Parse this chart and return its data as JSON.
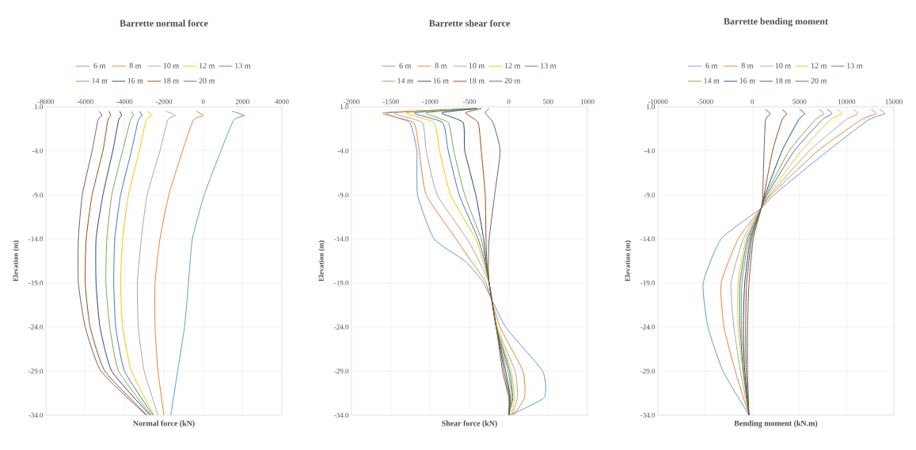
{
  "chart_data": [
    {
      "type": "line",
      "title": "Barrette normal force",
      "xlabel": "Normal force (kN)",
      "ylabel": "Elevation (m)",
      "xlim": [
        -8000,
        4000
      ],
      "xticks": [
        -8000,
        -6000,
        -4000,
        -2000,
        0,
        2000,
        4000
      ],
      "ylim": [
        -34,
        1
      ],
      "yticks": [
        {
          "value": 1,
          "label": "1.0"
        },
        {
          "value": -4,
          "label": "-4.0"
        },
        {
          "value": -9,
          "label": "-9.0"
        },
        {
          "value": -14,
          "label": "-14.0"
        },
        {
          "value": -19,
          "label": "-19.0"
        },
        {
          "value": -24,
          "label": "-24.0"
        },
        {
          "value": -29,
          "label": "-29.0"
        },
        {
          "value": -34,
          "label": "-34.0"
        }
      ],
      "grid": true,
      "legend": "top",
      "series": [
        {
          "name": "6 m",
          "color": "#5b9bd5",
          "x": [
            1450,
            2100,
            1550,
            900,
            50,
            -550,
            -750,
            -950,
            -1300,
            -1650
          ],
          "values": [
            0.5,
            0,
            -0.5,
            -4,
            -9,
            -14,
            -19,
            -24,
            -29,
            -34
          ]
        },
        {
          "name": "8 m",
          "color": "#ed7d31",
          "x": [
            -350,
            0,
            -500,
            -1050,
            -1750,
            -2200,
            -2450,
            -2450,
            -2300,
            -2000
          ],
          "values": [
            0.5,
            0,
            -0.5,
            -4,
            -9,
            -14,
            -19,
            -24,
            -29,
            -34
          ]
        },
        {
          "name": "10 m",
          "color": "#a5a5a5",
          "x": [
            -1900,
            -1400,
            -1800,
            -2200,
            -2850,
            -3150,
            -3350,
            -3300,
            -3000,
            -2300
          ],
          "values": [
            0.5,
            0,
            -0.5,
            -4,
            -9,
            -14,
            -19,
            -24,
            -29,
            -34
          ]
        },
        {
          "name": "12 m",
          "color": "#ffc000",
          "x": [
            -2850,
            -2600,
            -2900,
            -3250,
            -3800,
            -4100,
            -4200,
            -4100,
            -3650,
            -2500
          ],
          "values": [
            0.5,
            0,
            -0.5,
            -4,
            -9,
            -14,
            -19,
            -24,
            -29,
            -34
          ]
        },
        {
          "name": "13 m",
          "color": "#4472c4",
          "x": [
            -3250,
            -3100,
            -3300,
            -3650,
            -4200,
            -4500,
            -4550,
            -4450,
            -4000,
            -2550
          ],
          "values": [
            0.5,
            0,
            -0.5,
            -4,
            -9,
            -14,
            -19,
            -24,
            -29,
            -34
          ]
        },
        {
          "name": "14 m",
          "color": "#70ad47",
          "x": [
            -3650,
            -3550,
            -3700,
            -4100,
            -4650,
            -4900,
            -4950,
            -4750,
            -4300,
            -2650
          ],
          "values": [
            0.5,
            0,
            -0.5,
            -4,
            -9,
            -14,
            -19,
            -24,
            -29,
            -34
          ]
        },
        {
          "name": "16 m",
          "color": "#264478",
          "x": [
            -4250,
            -4150,
            -4300,
            -4600,
            -5100,
            -5450,
            -5450,
            -5250,
            -4650,
            -2700
          ],
          "values": [
            0.5,
            0,
            -0.5,
            -4,
            -9,
            -14,
            -19,
            -24,
            -29,
            -34
          ]
        },
        {
          "name": "18 m",
          "color": "#9e480e",
          "x": [
            -4800,
            -4700,
            -4850,
            -5100,
            -5650,
            -5950,
            -6000,
            -5750,
            -5000,
            -2850
          ],
          "values": [
            0.5,
            0,
            -0.5,
            -4,
            -9,
            -14,
            -19,
            -24,
            -29,
            -34
          ]
        },
        {
          "name": "20 m",
          "color": "#636363",
          "x": [
            -5300,
            -5150,
            -5350,
            -5650,
            -6150,
            -6350,
            -6350,
            -6000,
            -5200,
            -2900
          ],
          "values": [
            0.5,
            0,
            -0.5,
            -4,
            -9,
            -14,
            -19,
            -24,
            -29,
            -34
          ]
        }
      ]
    },
    {
      "type": "line",
      "title": "Barrette shear force",
      "xlabel": "Shear force (kN)",
      "ylabel": "Elevation (m)",
      "xlim": [
        -2000,
        1000
      ],
      "xticks": [
        -2000,
        -1500,
        -1000,
        -500,
        0,
        500,
        1000
      ],
      "ylim": [
        -34,
        1
      ],
      "yticks": [
        {
          "value": 1,
          "label": "1.0"
        },
        {
          "value": -4,
          "label": "-4.0"
        },
        {
          "value": -9,
          "label": "-9.0"
        },
        {
          "value": -14,
          "label": "-14.0"
        },
        {
          "value": -19,
          "label": "-19.0"
        },
        {
          "value": -24,
          "label": "-24.0"
        },
        {
          "value": -29,
          "label": "-29.0"
        },
        {
          "value": -34,
          "label": "-34.0"
        }
      ],
      "grid": true,
      "legend": "top",
      "series": [
        {
          "name": "6 m",
          "color": "#5b9bd5",
          "x": [
            -450,
            -1550,
            -1260,
            -1170,
            -1160,
            -950,
            -560,
            -320,
            -40,
            430,
            450,
            10
          ],
          "values": [
            0.8,
            0.3,
            -0.8,
            -4,
            -9,
            -14,
            -16.5,
            -19,
            -24,
            -29,
            -32,
            -34
          ]
        },
        {
          "name": "8 m",
          "color": "#ed7d31",
          "x": [
            -450,
            -1600,
            -1210,
            -1140,
            -1050,
            -670,
            -480,
            -290,
            -110,
            180,
            200,
            60
          ],
          "values": [
            0.8,
            0.3,
            -0.8,
            -4,
            -9,
            -14,
            -16.5,
            -19,
            -24,
            -29,
            -32,
            -34
          ]
        },
        {
          "name": "10 m",
          "color": "#a5a5a5",
          "x": [
            -440,
            -1450,
            -1100,
            -1050,
            -910,
            -530,
            -380,
            -250,
            -150,
            80,
            110,
            40
          ],
          "values": [
            0.8,
            0.3,
            -0.8,
            -4,
            -9,
            -14,
            -16.5,
            -19,
            -24,
            -29,
            -32,
            -34
          ]
        },
        {
          "name": "12 m",
          "color": "#ffc000",
          "x": [
            -430,
            -1300,
            -950,
            -880,
            -740,
            -420,
            -330,
            -250,
            -150,
            30,
            70,
            30
          ],
          "values": [
            0.8,
            0.3,
            -0.8,
            -4,
            -9,
            -14,
            -16.5,
            -19,
            -24,
            -29,
            -32,
            -34
          ]
        },
        {
          "name": "13 m",
          "color": "#4472c4",
          "x": [
            -420,
            -1200,
            -840,
            -770,
            -630,
            -390,
            -310,
            -250,
            -160,
            10,
            50,
            0
          ],
          "values": [
            0.8,
            0.3,
            -0.8,
            -4,
            -9,
            -14,
            -16.5,
            -19,
            -24,
            -29,
            -32,
            -34
          ]
        },
        {
          "name": "14 m",
          "color": "#70ad47",
          "x": [
            -410,
            -1050,
            -770,
            -700,
            -560,
            -350,
            -300,
            -250,
            -160,
            -10,
            40,
            0
          ],
          "values": [
            0.8,
            0.3,
            -0.8,
            -4,
            -9,
            -14,
            -16.5,
            -19,
            -24,
            -29,
            -32,
            -34
          ]
        },
        {
          "name": "16 m",
          "color": "#264478",
          "x": [
            -400,
            -850,
            -580,
            -560,
            -420,
            -320,
            -290,
            -250,
            -160,
            -40,
            20,
            0
          ],
          "values": [
            0.8,
            0.3,
            -0.8,
            -4,
            -9,
            -14,
            -16.5,
            -19,
            -24,
            -29,
            -32,
            -34
          ]
        },
        {
          "name": "18 m",
          "color": "#9e480e",
          "x": [
            -350,
            -550,
            -390,
            -350,
            -300,
            -290,
            -280,
            -250,
            -160,
            -60,
            10,
            0
          ],
          "values": [
            0.8,
            0.3,
            -0.8,
            -4,
            -9,
            -14,
            -16.5,
            -19,
            -24,
            -29,
            -32,
            -34
          ]
        },
        {
          "name": "20 m",
          "color": "#636363",
          "x": [
            -250,
            -300,
            -200,
            -110,
            -180,
            -250,
            -260,
            -250,
            -160,
            -80,
            0,
            0
          ],
          "values": [
            0.8,
            0.3,
            -0.8,
            -4,
            -9,
            -14,
            -16.5,
            -19,
            -24,
            -29,
            -32,
            -34
          ]
        }
      ]
    },
    {
      "type": "line",
      "title": "Barrette bending moment",
      "xlabel": "Bending moment (kN.m)",
      "ylabel": "Elevation (m)",
      "xlim": [
        -10000,
        15000
      ],
      "xticks": [
        -10000,
        -5000,
        0,
        5000,
        10000,
        15000
      ],
      "ylim": [
        -34,
        1
      ],
      "yticks": [
        {
          "value": 1,
          "label": "1.0"
        },
        {
          "value": -4,
          "label": "-4.0"
        },
        {
          "value": -9,
          "label": "-9.0"
        },
        {
          "value": -14,
          "label": "-14.0"
        },
        {
          "value": -19,
          "label": "-19.0"
        },
        {
          "value": -24,
          "label": "-24.0"
        },
        {
          "value": -29,
          "label": "-29.0"
        },
        {
          "value": -34,
          "label": "-34.0"
        }
      ],
      "grid": true,
      "legend": "top",
      "series": [
        {
          "name": "6 m",
          "color": "#5b9bd5",
          "x": [
            13500,
            14000,
            12300,
            8000,
            2300,
            950,
            -3300,
            -5200,
            -4700,
            -3100,
            -350
          ],
          "values": [
            0.7,
            0.2,
            -0.5,
            -4,
            -9,
            -10.5,
            -14,
            -19,
            -24,
            -29,
            -34
          ]
        },
        {
          "name": "8 m",
          "color": "#ed7d31",
          "x": [
            12600,
            13100,
            11500,
            6950,
            2000,
            950,
            -1500,
            -3300,
            -3000,
            -1800,
            -350
          ],
          "values": [
            0.7,
            0.2,
            -0.5,
            -4,
            -9,
            -10.5,
            -14,
            -19,
            -24,
            -29,
            -34
          ]
        },
        {
          "name": "10 m",
          "color": "#a5a5a5",
          "x": [
            10700,
            11200,
            9900,
            6050,
            1850,
            950,
            -950,
            -2250,
            -1950,
            -1250,
            -350
          ],
          "values": [
            0.7,
            0.2,
            -0.5,
            -4,
            -9,
            -10.5,
            -14,
            -19,
            -24,
            -29,
            -34
          ]
        },
        {
          "name": "12 m",
          "color": "#ffc000",
          "x": [
            9000,
            9500,
            8250,
            5200,
            1700,
            950,
            -650,
            -1500,
            -1500,
            -1000,
            -350
          ],
          "values": [
            0.7,
            0.2,
            -0.5,
            -4,
            -9,
            -10.5,
            -14,
            -19,
            -24,
            -29,
            -34
          ]
        },
        {
          "name": "13 m",
          "color": "#4472c4",
          "x": [
            7950,
            8450,
            7400,
            4450,
            1550,
            950,
            -500,
            -1300,
            -1300,
            -950,
            -350
          ],
          "values": [
            0.7,
            0.2,
            -0.5,
            -4,
            -9,
            -10.5,
            -14,
            -19,
            -24,
            -29,
            -34
          ]
        },
        {
          "name": "14 m",
          "color": "#70ad47",
          "x": [
            7100,
            7600,
            6650,
            3900,
            1450,
            950,
            -350,
            -1100,
            -1150,
            -900,
            -350
          ],
          "values": [
            0.7,
            0.2,
            -0.5,
            -4,
            -9,
            -10.5,
            -14,
            -19,
            -24,
            -29,
            -34
          ]
        },
        {
          "name": "16 m",
          "color": "#264478",
          "x": [
            5050,
            5550,
            4900,
            3150,
            1350,
            950,
            -200,
            -800,
            -950,
            -800,
            -350
          ],
          "values": [
            0.7,
            0.2,
            -0.5,
            -4,
            -9,
            -10.5,
            -14,
            -19,
            -24,
            -29,
            -34
          ]
        },
        {
          "name": "18 m",
          "color": "#9e480e",
          "x": [
            3150,
            3650,
            3150,
            2150,
            1250,
            950,
            -50,
            -600,
            -700,
            -650,
            -350
          ],
          "values": [
            0.7,
            0.2,
            -0.5,
            -4,
            -9,
            -10.5,
            -14,
            -19,
            -24,
            -29,
            -34
          ]
        },
        {
          "name": "20 m",
          "color": "#636363",
          "x": [
            1400,
            1900,
            1400,
            1250,
            1100,
            950,
            100,
            -350,
            -500,
            -500,
            -350
          ],
          "values": [
            0.7,
            0.2,
            -0.5,
            -4,
            -9,
            -10.5,
            -14,
            -19,
            -24,
            -29,
            -34
          ]
        }
      ]
    }
  ]
}
